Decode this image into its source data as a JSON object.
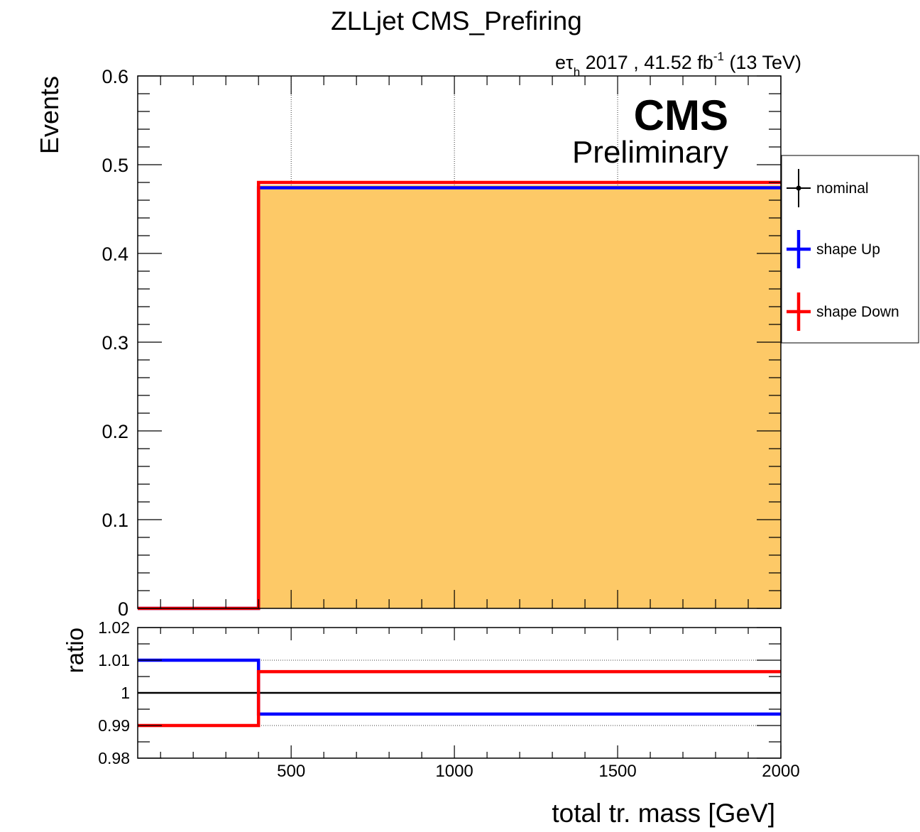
{
  "title": "ZLLjet CMS_Prefiring",
  "header": {
    "channel_prefix": "e",
    "channel_tau": "τ",
    "channel_sub": "h",
    "lumi_text": " 2017 , 41.52 fb",
    "lumi_exp": "-1",
    "energy": " (13 TeV)"
  },
  "cms_label": "CMS",
  "cms_sublabel": "Preliminary",
  "legend": {
    "items": [
      {
        "label": "nominal",
        "color": "#000000"
      },
      {
        "label": "shape Up",
        "color": "#0000ff"
      },
      {
        "label": "shape Down",
        "color": "#ff0000"
      }
    ]
  },
  "chart_data": [
    {
      "type": "line",
      "subtype": "step-histogram",
      "xlabel": "",
      "ylabel": "Events",
      "xlim": [
        30,
        2000
      ],
      "ylim": [
        0,
        0.6
      ],
      "y_ticks": [
        "0",
        "0.1",
        "0.2",
        "0.3",
        "0.4",
        "0.5",
        "0.6"
      ],
      "grid": true,
      "bin_edges": [
        30,
        400,
        2000
      ],
      "fill_color": "#fdc967",
      "series": [
        {
          "name": "nominal",
          "values": [
            0,
            0.477
          ],
          "color": "#fdc967"
        },
        {
          "name": "shape Up",
          "values": [
            0,
            0.474
          ],
          "color": "#0000ff"
        },
        {
          "name": "shape Down",
          "values": [
            0,
            0.48
          ],
          "color": "#ff0000"
        }
      ]
    },
    {
      "type": "line",
      "subtype": "step-ratio",
      "xlabel": "total tr. mass [GeV]",
      "ylabel": "ratio",
      "xlim": [
        30,
        2000
      ],
      "ylim": [
        0.98,
        1.02
      ],
      "x_ticks": [
        "500",
        "1000",
        "1500",
        "2000"
      ],
      "y_ticks": [
        "0.98",
        "0.99",
        "1",
        "1.01",
        "1.02"
      ],
      "grid": true,
      "bin_edges": [
        30,
        400,
        2000
      ],
      "series": [
        {
          "name": "nominal",
          "values": [
            1.0,
            1.0
          ],
          "color": "#000000"
        },
        {
          "name": "shape Up",
          "values": [
            1.01,
            0.9935
          ],
          "color": "#0000ff"
        },
        {
          "name": "shape Down",
          "values": [
            0.99,
            1.0065
          ],
          "color": "#ff0000"
        }
      ]
    }
  ]
}
